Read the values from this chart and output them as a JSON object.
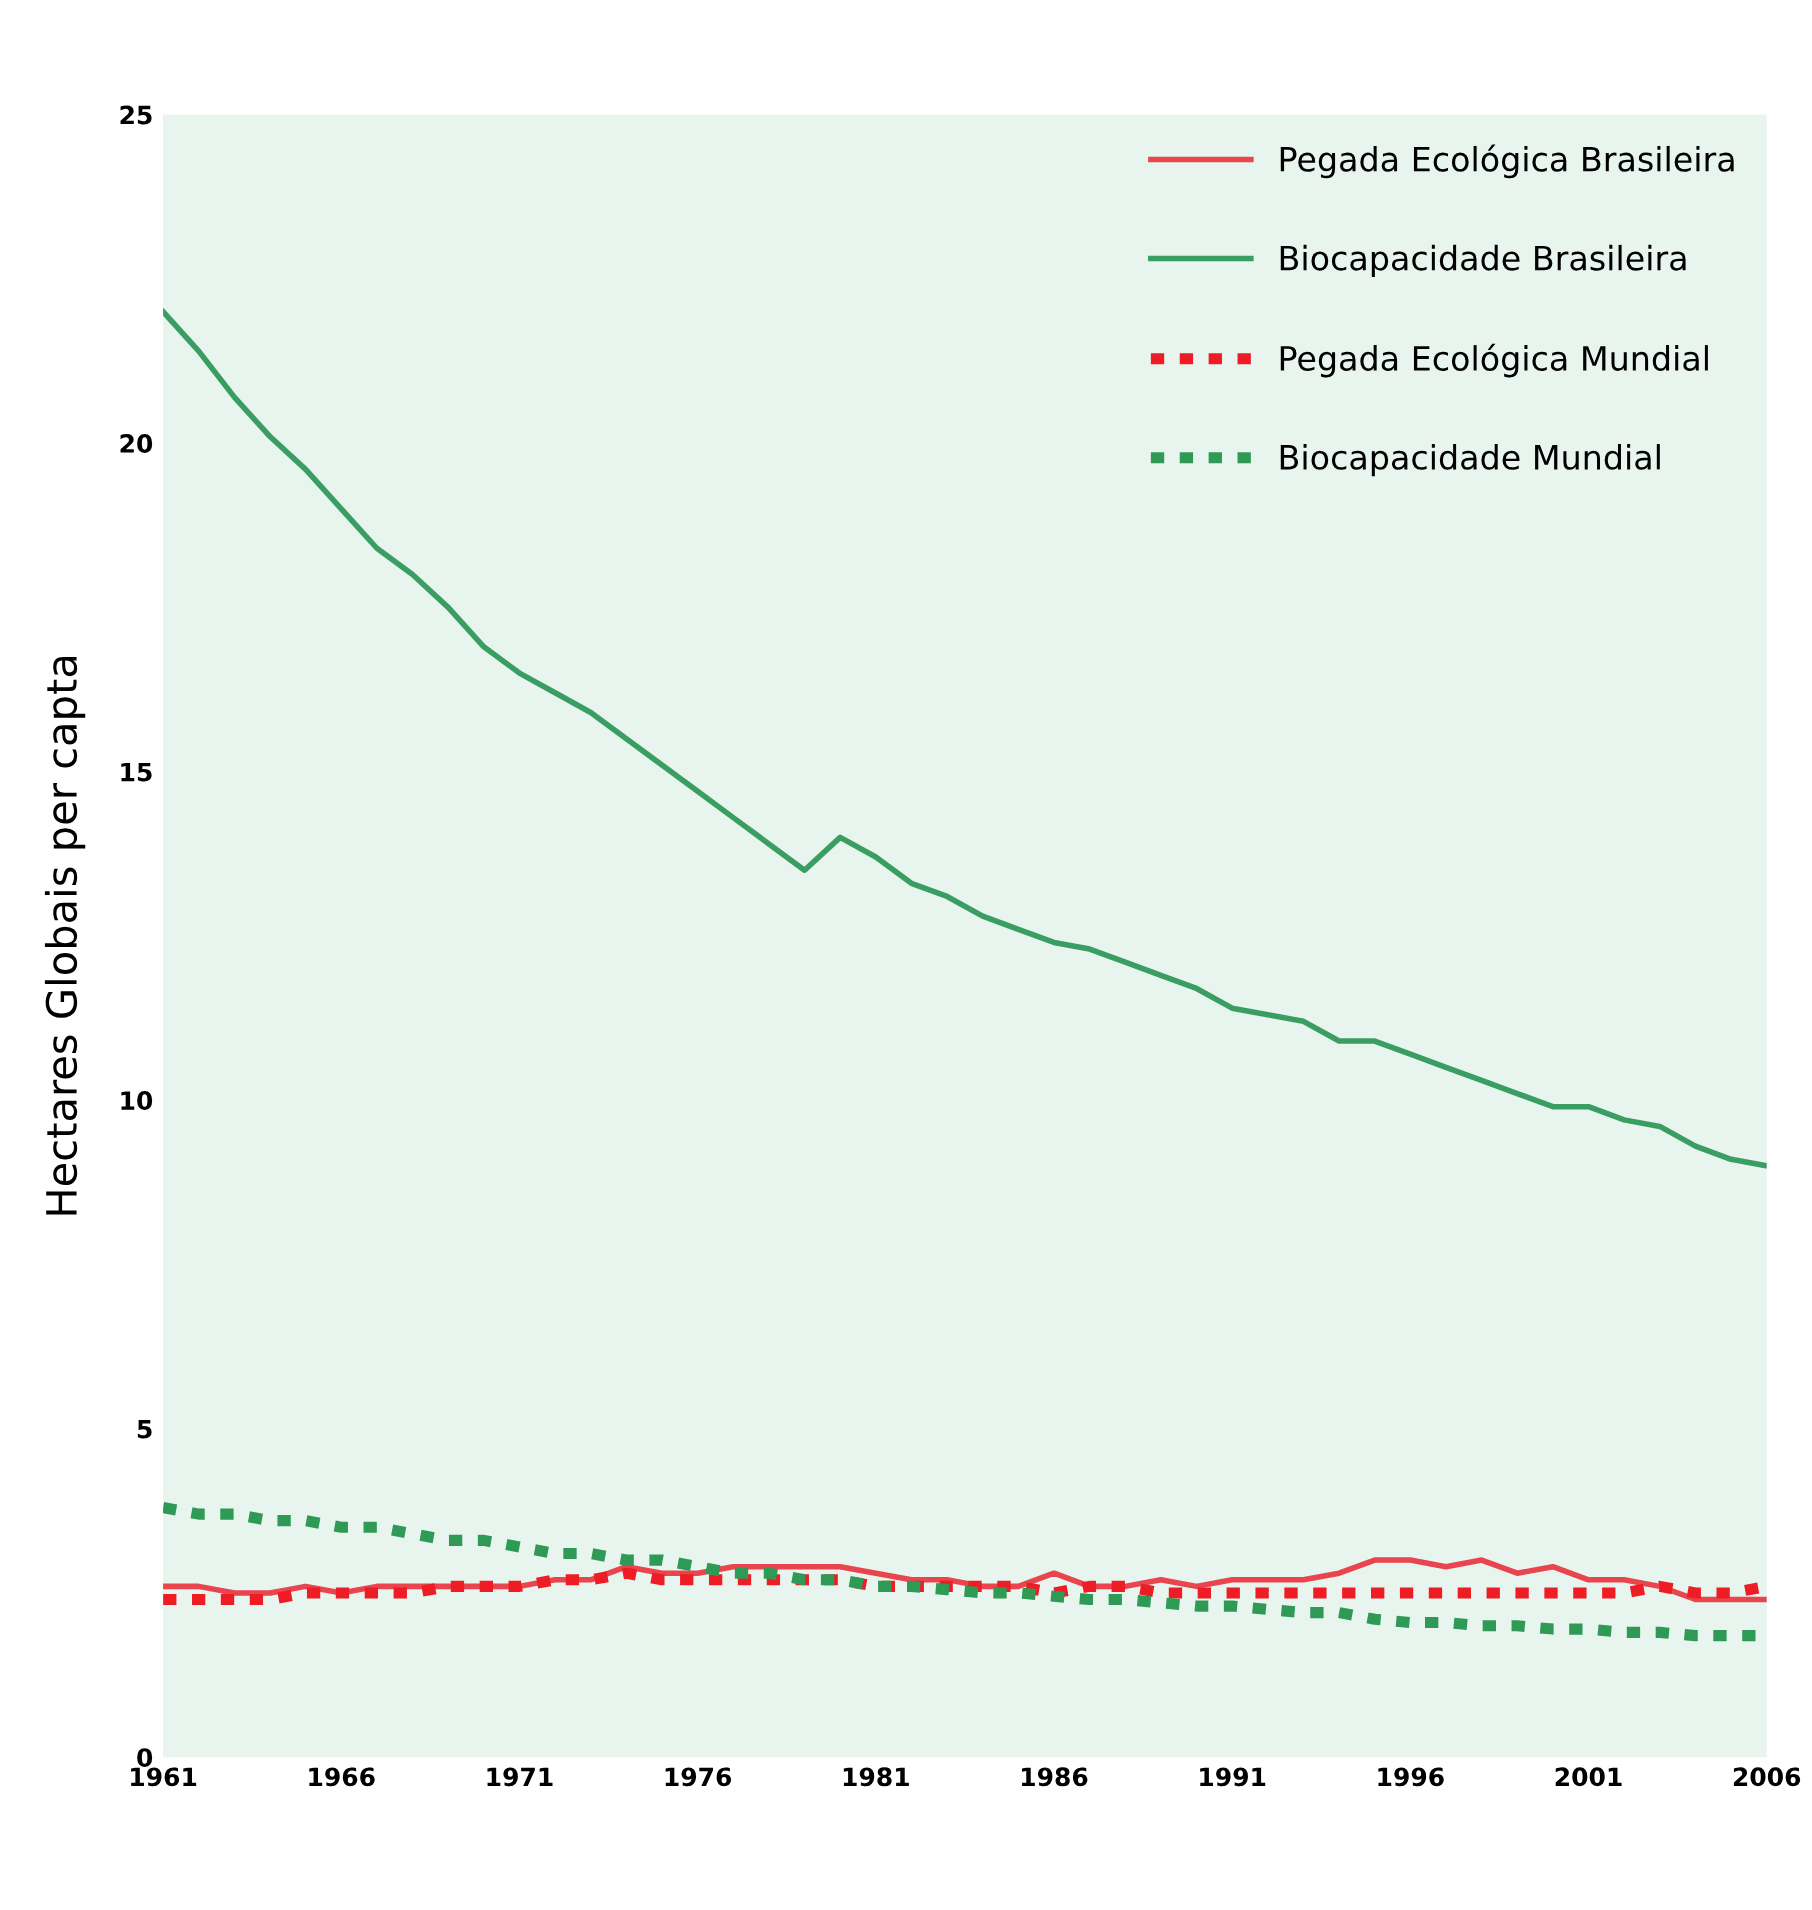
{
  "chart_data": {
    "type": "line",
    "ylabel": "Hectares Globais per capta",
    "x": [
      1961,
      1962,
      1963,
      1964,
      1965,
      1966,
      1967,
      1968,
      1969,
      1970,
      1971,
      1972,
      1973,
      1974,
      1975,
      1976,
      1977,
      1978,
      1979,
      1980,
      1981,
      1982,
      1983,
      1984,
      1985,
      1986,
      1987,
      1988,
      1989,
      1990,
      1991,
      1992,
      1993,
      1994,
      1995,
      1996,
      1997,
      1998,
      1999,
      2000,
      2001,
      2002,
      2003,
      2004,
      2005,
      2006
    ],
    "series": [
      {
        "name": "Pegada Ecológica Brasileira",
        "color": "#e8454f",
        "line_style": "solid",
        "values": [
          2.6,
          2.6,
          2.5,
          2.5,
          2.6,
          2.5,
          2.6,
          2.6,
          2.6,
          2.6,
          2.6,
          2.7,
          2.7,
          2.9,
          2.8,
          2.8,
          2.9,
          2.9,
          2.9,
          2.9,
          2.8,
          2.7,
          2.7,
          2.6,
          2.6,
          2.8,
          2.6,
          2.6,
          2.7,
          2.6,
          2.7,
          2.7,
          2.7,
          2.8,
          3.0,
          3.0,
          2.9,
          3.0,
          2.8,
          2.9,
          2.7,
          2.7,
          2.6,
          2.4,
          2.4,
          2.4
        ]
      },
      {
        "name": "Biocapacidade Brasileira",
        "color": "#3a9e63",
        "line_style": "solid",
        "values": [
          22.0,
          21.4,
          20.7,
          20.1,
          19.6,
          19.0,
          18.4,
          18.0,
          17.5,
          16.9,
          16.5,
          16.2,
          15.9,
          15.5,
          15.1,
          14.7,
          14.3,
          13.9,
          13.5,
          14.0,
          13.7,
          13.3,
          13.1,
          12.8,
          12.6,
          12.4,
          12.3,
          12.1,
          11.9,
          11.7,
          11.4,
          11.3,
          11.2,
          10.9,
          10.9,
          10.7,
          10.5,
          10.3,
          10.1,
          9.9,
          9.9,
          9.7,
          9.6,
          9.3,
          9.1,
          9.0
        ]
      },
      {
        "name": "Pegada Ecológica Mundial",
        "color": "#ee1c25",
        "line_style": "dotted",
        "values": [
          2.4,
          2.4,
          2.4,
          2.4,
          2.5,
          2.5,
          2.5,
          2.5,
          2.6,
          2.6,
          2.6,
          2.7,
          2.7,
          2.8,
          2.7,
          2.7,
          2.7,
          2.7,
          2.7,
          2.7,
          2.6,
          2.6,
          2.6,
          2.6,
          2.6,
          2.5,
          2.6,
          2.6,
          2.5,
          2.5,
          2.5,
          2.5,
          2.5,
          2.5,
          2.5,
          2.5,
          2.5,
          2.5,
          2.5,
          2.5,
          2.5,
          2.5,
          2.6,
          2.5,
          2.5,
          2.6
        ]
      },
      {
        "name": "Biocapacidade Mundial",
        "color": "#2e9a55",
        "line_style": "dotted",
        "values": [
          3.8,
          3.7,
          3.7,
          3.6,
          3.6,
          3.5,
          3.5,
          3.4,
          3.3,
          3.3,
          3.2,
          3.1,
          3.1,
          3.0,
          3.0,
          2.9,
          2.8,
          2.8,
          2.7,
          2.7,
          2.6,
          2.6,
          2.55,
          2.5,
          2.5,
          2.45,
          2.4,
          2.4,
          2.35,
          2.3,
          2.3,
          2.25,
          2.2,
          2.2,
          2.1,
          2.05,
          2.05,
          2.0,
          2.0,
          1.95,
          1.95,
          1.9,
          1.9,
          1.85,
          1.85,
          1.85
        ]
      }
    ],
    "xlim": [
      1961,
      2006
    ],
    "xticks": [
      1961,
      1966,
      1971,
      1976,
      1981,
      1986,
      1991,
      1996,
      2001,
      2006
    ],
    "ylim": [
      0,
      25
    ],
    "yticks": [
      0,
      5,
      10,
      15,
      20,
      25
    ],
    "grid": false,
    "legend": "top right"
  }
}
